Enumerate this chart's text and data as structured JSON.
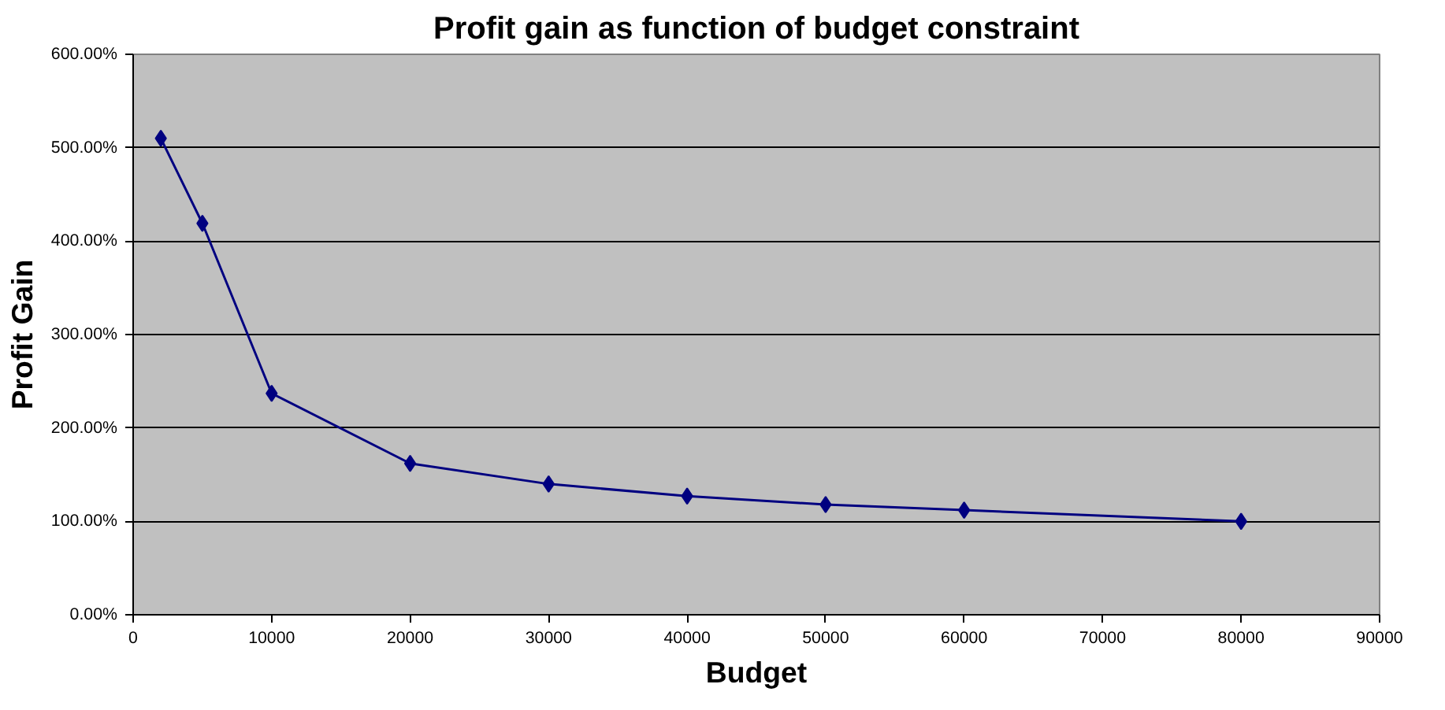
{
  "chart_data": {
    "type": "line",
    "title": "Profit gain as function of budget constraint",
    "xlabel": "Budget",
    "ylabel": "Profit Gain",
    "x": [
      2000,
      5000,
      10000,
      20000,
      30000,
      40000,
      50000,
      60000,
      80000
    ],
    "series": [
      {
        "color": "#000080",
        "values": [
          510,
          419,
          237,
          162,
          140,
          127,
          118,
          112,
          100
        ]
      }
    ],
    "xlim": [
      0,
      90000
    ],
    "xticks": [
      0,
      10000,
      20000,
      30000,
      40000,
      50000,
      60000,
      70000,
      80000,
      90000
    ],
    "ylim": [
      0,
      600
    ],
    "yticks": [
      {
        "value": 0,
        "label": "0.00%"
      },
      {
        "value": 100,
        "label": "100.00%"
      },
      {
        "value": 200,
        "label": "200.00%"
      },
      {
        "value": 300,
        "label": "300.00%"
      },
      {
        "value": 400,
        "label": "400.00%"
      },
      {
        "value": 500,
        "label": "500.00%"
      },
      {
        "value": 600,
        "label": "600.00%"
      }
    ],
    "grid": "y",
    "marker": "diamond",
    "line_style": "solid"
  }
}
